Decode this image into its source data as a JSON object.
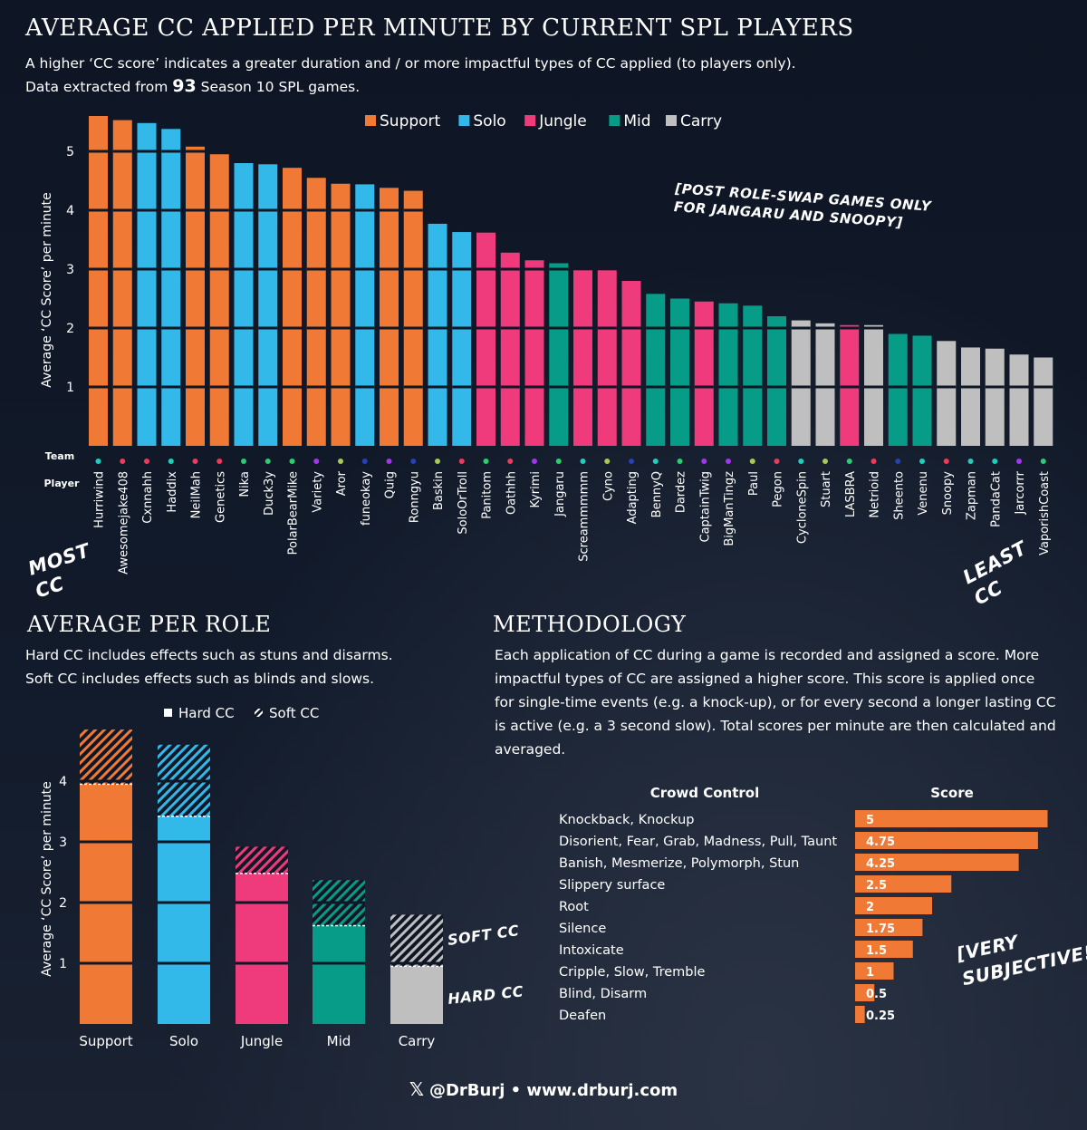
{
  "header": {
    "title": "AVERAGE CC APPLIED PER MINUTE BY CURRENT SPL PLAYERS",
    "subtitle_line1": "A higher ‘CC score’ indicates a greater duration and / or more impactful types of CC applied (to players only).",
    "subtitle_pre": "Data extracted from ",
    "subtitle_num": "93",
    "subtitle_post": " Season 10 SPL games."
  },
  "colors": {
    "Support": "#f07a35",
    "Solo": "#33b8ea",
    "Jungle": "#ef3a7c",
    "Mid": "#069c87",
    "Carry": "#bfbfbf"
  },
  "annotations": {
    "most": "MOST\nCC",
    "least": "LEAST\nCC",
    "post_swap": "[POST ROLE-SWAP GAMES ONLY\nFOR JANGARU AND SNOOPY]",
    "soft_cc": "SOFT CC",
    "hard_cc": "HARD CC",
    "very_subjective": "[VERY\nSUBJECTIVE!]",
    "team_label": "Team",
    "player_label": "Player"
  },
  "chart_data": [
    {
      "type": "bar",
      "title": "AVERAGE CC APPLIED PER MINUTE BY CURRENT SPL PLAYERS",
      "ylabel": "Average ‘CC Score’ per minute",
      "ylim": [
        0,
        5.6
      ],
      "yticks": [
        1,
        2,
        3,
        4,
        5
      ],
      "legend": [
        "Support",
        "Solo",
        "Jungle",
        "Mid",
        "Carry"
      ],
      "legend_position": "top",
      "categories": [
        "Hurriwind",
        "Awesomejake408",
        "Cxnnahh",
        "Haddix",
        "NeilMah",
        "Genetics",
        "Nika",
        "Duck3y",
        "PolarBearMike",
        "Variety",
        "Aror",
        "funeokay",
        "Quig",
        "Ronngyu",
        "Baskin",
        "SoloOrTroll",
        "Panitom",
        "Oathhh",
        "Kyrimi",
        "Jangaru",
        "Screammmmm",
        "Cyno",
        "Adapting",
        "BennyQ",
        "Dardez",
        "CaptainTwig",
        "BigManTingz",
        "Paul",
        "Pegon",
        "CycloneSpin",
        "Stuart",
        "LASBRA",
        "Netrioid",
        "Sheento",
        "Venenu",
        "Snoopy",
        "Zapman",
        "PandaCat",
        "Jarcorrr",
        "VaporishCoast"
      ],
      "values": [
        5.6,
        5.53,
        5.48,
        5.38,
        5.08,
        4.95,
        4.8,
        4.78,
        4.72,
        4.55,
        4.45,
        4.44,
        4.38,
        4.33,
        3.77,
        3.63,
        3.62,
        3.28,
        3.15,
        3.1,
        2.98,
        2.98,
        2.8,
        2.58,
        2.5,
        2.45,
        2.42,
        2.38,
        2.2,
        2.13,
        2.08,
        2.05,
        2.05,
        1.9,
        1.87,
        1.78,
        1.67,
        1.65,
        1.55,
        1.5
      ],
      "roles": [
        "Support",
        "Support",
        "Solo",
        "Solo",
        "Support",
        "Support",
        "Solo",
        "Solo",
        "Support",
        "Support",
        "Support",
        "Solo",
        "Support",
        "Support",
        "Solo",
        "Solo",
        "Jungle",
        "Jungle",
        "Jungle",
        "Mid",
        "Jungle",
        "Jungle",
        "Jungle",
        "Mid",
        "Mid",
        "Jungle",
        "Mid",
        "Mid",
        "Mid",
        "Carry",
        "Carry",
        "Jungle",
        "Carry",
        "Mid",
        "Mid",
        "Carry",
        "Carry",
        "Carry",
        "Carry",
        "Carry"
      ],
      "team_colors": [
        "#1ecfbe",
        "#ef3a5c",
        "#ef3a5c",
        "#1ecfbe",
        "#ef3a5c",
        "#ef3a5c",
        "#2ecc71",
        "#2ecc71",
        "#2ecc71",
        "#a335ee",
        "#a7c957",
        "#2541b2",
        "#a335ee",
        "#2541b2",
        "#a7c957",
        "#ef3a5c",
        "#2ecc71",
        "#ef3a5c",
        "#a335ee",
        "#2ecc71",
        "#1ecfbe",
        "#a7c957",
        "#2541b2",
        "#1ecfbe",
        "#2ecc71",
        "#a335ee",
        "#a335ee",
        "#a7c957",
        "#ef3a5c",
        "#1ecfbe",
        "#a7c957",
        "#2ecc71",
        "#ef3a5c",
        "#2541b2",
        "#1ecfbe",
        "#ef3a5c",
        "#1ecfbe",
        "#1ecfbe",
        "#a335ee",
        "#2ecc71"
      ]
    },
    {
      "type": "bar",
      "title": "AVERAGE PER ROLE",
      "ylabel": "Average ‘CC Score’ per minute",
      "ylim": [
        0,
        4.9
      ],
      "yticks": [
        1,
        2,
        3,
        4
      ],
      "legend": [
        "Hard CC",
        "Soft CC"
      ],
      "categories": [
        "Support",
        "Solo",
        "Jungle",
        "Mid",
        "Carry"
      ],
      "series": [
        {
          "name": "Hard CC",
          "values": [
            3.95,
            3.42,
            2.48,
            1.62,
            0.95
          ]
        },
        {
          "name": "Soft CC",
          "values": [
            0.9,
            1.18,
            0.44,
            0.75,
            0.85
          ]
        }
      ]
    },
    {
      "type": "bar",
      "orientation": "horizontal",
      "xlabel": "Score",
      "ylabel": "Crowd Control",
      "categories": [
        "Knockback, Knockup",
        "Disorient, Fear, Grab, Madness, Pull, Taunt",
        "Banish, Mesmerize, Polymorph, Stun",
        "Slippery surface",
        "Root",
        "Silence",
        "Intoxicate",
        "Cripple, Slow, Tremble",
        "Blind, Disarm",
        "Deafen"
      ],
      "values": [
        5,
        4.75,
        4.25,
        2.5,
        2,
        1.75,
        1.5,
        1,
        0.5,
        0.25
      ],
      "value_labels": [
        "5",
        "4.75",
        "4.25",
        "2.5",
        "2",
        "1.75",
        "1.5",
        "1",
        "0.5",
        "0.25"
      ]
    }
  ],
  "role_section": {
    "title": "AVERAGE PER ROLE",
    "desc1": "Hard CC includes effects such as stuns and disarms.",
    "desc2": "Soft CC includes effects such as blinds and slows."
  },
  "methodology": {
    "title": "METHODOLOGY",
    "text": "Each application of CC during a game is recorded and assigned a score. More impactful types of CC are assigned a higher score. This score is applied once for single-time events (e.g. a knock-up), or for every second a longer lasting CC is active (e.g. a 3 second slow). Total scores per minute are then calculated and averaged."
  },
  "footer": {
    "icon": "x-logo-icon",
    "text": "@DrBurj • www.drburj.com"
  }
}
